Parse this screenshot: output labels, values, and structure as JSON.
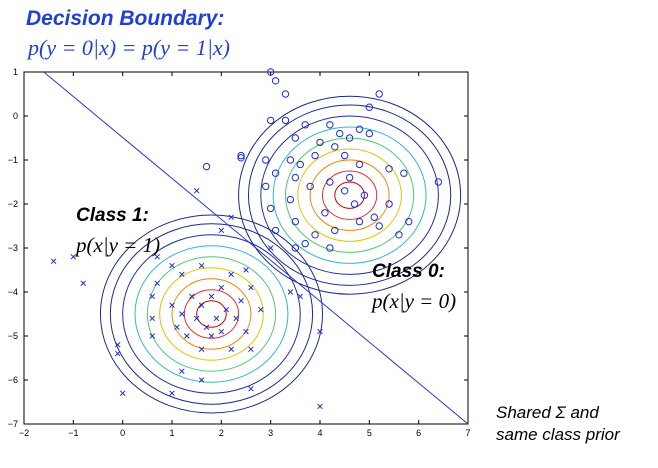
{
  "title": "Decision Boundary:",
  "formula": "p(y = 0|x) = p(y = 1|x)",
  "class1_title": "Class 1:",
  "class1_formula": "p(x|y = 1)",
  "class0_title": "Class 0:",
  "class0_formula": "p(x|y = 0)",
  "note_line1": "Shared Σ and",
  "note_line2": "same class prior",
  "chart_data": {
    "type": "scatter",
    "xlim": [
      -2,
      7
    ],
    "ylim": [
      -7,
      1
    ],
    "x_ticks": [
      -2,
      -1,
      0,
      1,
      2,
      3,
      4,
      5,
      6,
      7
    ],
    "y_ticks": [
      1,
      0,
      -1,
      -2,
      -3,
      -4,
      -5,
      -6,
      -7
    ],
    "boundary_line": [
      [
        -1.6,
        1.0
      ],
      [
        7.0,
        -7.0
      ]
    ],
    "class0": {
      "marker": "o",
      "color": "#1f2fd0",
      "center": [
        4.6,
        -1.8
      ],
      "points": [
        [
          3.0,
          1.0
        ],
        [
          3.1,
          0.8
        ],
        [
          3.3,
          0.5
        ],
        [
          5.2,
          0.5
        ],
        [
          5.0,
          0.2
        ],
        [
          3.0,
          -0.1
        ],
        [
          3.3,
          -0.1
        ],
        [
          3.7,
          -0.2
        ],
        [
          4.2,
          -0.2
        ],
        [
          4.8,
          -0.3
        ],
        [
          4.4,
          -0.4
        ],
        [
          5.0,
          -0.4
        ],
        [
          3.5,
          -0.5
        ],
        [
          4.6,
          -0.5
        ],
        [
          4.0,
          -0.6
        ],
        [
          4.3,
          -0.7
        ],
        [
          3.9,
          -0.9
        ],
        [
          4.5,
          -0.9
        ],
        [
          2.9,
          -1.0
        ],
        [
          3.4,
          -1.0
        ],
        [
          3.6,
          -1.1
        ],
        [
          4.8,
          -1.1
        ],
        [
          5.4,
          -1.2
        ],
        [
          5.7,
          -1.3
        ],
        [
          2.4,
          -0.9
        ],
        [
          2.4,
          -0.95
        ],
        [
          1.7,
          -1.15
        ],
        [
          3.1,
          -1.3
        ],
        [
          3.5,
          -1.4
        ],
        [
          4.2,
          -1.5
        ],
        [
          4.6,
          -1.4
        ],
        [
          2.9,
          -1.6
        ],
        [
          3.8,
          -1.6
        ],
        [
          4.5,
          -1.7
        ],
        [
          6.4,
          -1.5
        ],
        [
          4.9,
          -1.8
        ],
        [
          3.4,
          -1.9
        ],
        [
          4.7,
          -2.0
        ],
        [
          5.4,
          -2.0
        ],
        [
          3.0,
          -2.1
        ],
        [
          4.1,
          -2.2
        ],
        [
          5.1,
          -2.3
        ],
        [
          3.5,
          -2.4
        ],
        [
          4.8,
          -2.4
        ],
        [
          5.8,
          -2.4
        ],
        [
          5.2,
          -2.5
        ],
        [
          3.1,
          -2.6
        ],
        [
          4.3,
          -2.6
        ],
        [
          3.9,
          -2.7
        ],
        [
          5.6,
          -2.7
        ],
        [
          3.7,
          -2.9
        ],
        [
          3.5,
          -3.0
        ],
        [
          4.2,
          -3.0
        ]
      ]
    },
    "class1": {
      "marker": "x",
      "color": "#1f2fd0",
      "center": [
        1.8,
        -4.5
      ],
      "points": [
        [
          1.5,
          -1.7
        ],
        [
          2.2,
          -2.3
        ],
        [
          2.0,
          -2.6
        ],
        [
          -1.4,
          -3.3
        ],
        [
          -1.0,
          -3.2
        ],
        [
          3.0,
          -3.0
        ],
        [
          0.7,
          -3.2
        ],
        [
          1.0,
          -3.4
        ],
        [
          1.6,
          -3.4
        ],
        [
          2.5,
          -3.5
        ],
        [
          1.2,
          -3.6
        ],
        [
          2.2,
          -3.6
        ],
        [
          -0.8,
          -3.8
        ],
        [
          0.7,
          -3.8
        ],
        [
          2.0,
          -3.9
        ],
        [
          2.6,
          -3.9
        ],
        [
          0.6,
          -4.1
        ],
        [
          1.4,
          -4.1
        ],
        [
          1.8,
          -4.1
        ],
        [
          2.4,
          -4.2
        ],
        [
          3.4,
          -4.0
        ],
        [
          3.6,
          -4.1
        ],
        [
          1.0,
          -4.3
        ],
        [
          1.6,
          -4.3
        ],
        [
          2.1,
          -4.4
        ],
        [
          2.8,
          -4.4
        ],
        [
          1.2,
          -4.5
        ],
        [
          1.5,
          -4.6
        ],
        [
          1.9,
          -4.6
        ],
        [
          2.3,
          -4.6
        ],
        [
          0.6,
          -4.6
        ],
        [
          1.1,
          -4.8
        ],
        [
          1.7,
          -4.8
        ],
        [
          2.0,
          -4.9
        ],
        [
          2.5,
          -4.9
        ],
        [
          0.6,
          -5.0
        ],
        [
          1.3,
          -5.0
        ],
        [
          1.8,
          -5.0
        ],
        [
          4.0,
          -4.9
        ],
        [
          1.6,
          -5.3
        ],
        [
          2.2,
          -5.3
        ],
        [
          2.6,
          -5.3
        ],
        [
          -0.1,
          -5.2
        ],
        [
          -0.1,
          -5.4
        ],
        [
          1.2,
          -5.8
        ],
        [
          1.6,
          -6.0
        ],
        [
          0.0,
          -6.3
        ],
        [
          1.0,
          -6.3
        ],
        [
          2.6,
          -6.2
        ],
        [
          4.0,
          -6.6
        ]
      ]
    },
    "contour_radii": [
      0.3,
      0.55,
      0.8,
      1.05,
      1.3,
      1.55,
      1.8
    ],
    "contour_colors": [
      "#c00000",
      "#e03030",
      "#f08000",
      "#d8c800",
      "#50c878",
      "#30b8c8",
      "#1f2f9f"
    ]
  }
}
